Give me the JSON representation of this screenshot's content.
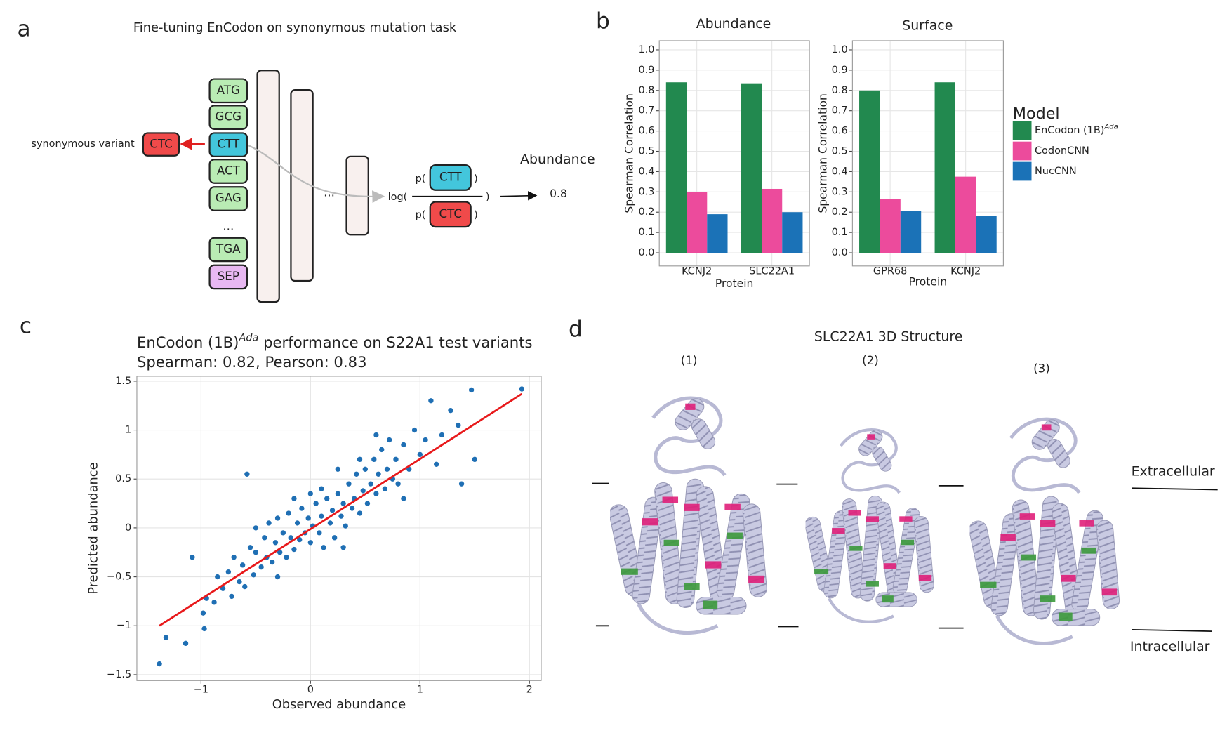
{
  "panel_labels": [
    "a",
    "b",
    "c",
    "d"
  ],
  "panel_a": {
    "title": "Fine-tuning EnCodon on synonymous mutation task",
    "tokens": [
      "ATG",
      "GCG",
      "CTT",
      "ACT",
      "GAG",
      "...",
      "TGA",
      "SEP"
    ],
    "variant_label": "synonymous variant",
    "variant_token": "CTC",
    "layer_ellipsis": "...",
    "formula": {
      "log_open": "log(",
      "num_open": "p(",
      "num_token": "CTT",
      "num_close": ")",
      "den_open": "p(",
      "den_token": "CTC",
      "den_close": ")",
      "log_close": ")"
    },
    "output_label": "Abundance",
    "output_value": "0.8"
  },
  "chart_data": [
    {
      "type": "bar",
      "facets": [
        "Abundance",
        "Surface"
      ],
      "categories": [
        [
          "KCNJ2",
          "SLC22A1"
        ],
        [
          "GPR68",
          "KCNJ2"
        ]
      ],
      "xlabel": "Protein",
      "ylabel": "Spearman Correlation",
      "ylim": [
        -0.065,
        1.045
      ],
      "yticks": [
        {
          "value": 0,
          "label": "0.0"
        },
        0.1,
        0.2,
        0.3,
        0.4,
        0.5,
        0.6,
        0.7,
        0.8,
        0.9,
        {
          "value": 1,
          "label": "1.0"
        }
      ],
      "grid": true,
      "legend_title": "Model",
      "series": [
        {
          "name": "EnCodon (1B)",
          "name_superscript": "Ada",
          "color": "#22894f",
          "values": [
            [
              0.84,
              0.835
            ],
            [
              0.8,
              0.84
            ]
          ]
        },
        {
          "name": "CodonCNN",
          "color": "#ec4b9c",
          "values": [
            [
              0.3,
              0.315
            ],
            [
              0.265,
              0.375
            ]
          ]
        },
        {
          "name": "NucCNN",
          "color": "#1b72b7",
          "values": [
            [
              0.19,
              0.2
            ],
            [
              0.205,
              0.18
            ]
          ]
        }
      ]
    },
    {
      "type": "scatter",
      "title": "EnCodon (1B)",
      "title_superscript": "Ada",
      "title_rest": " performance on S22A1 test variants",
      "subtitle": "Spearman: 0.82, Pearson: 0.83",
      "xlabel": "Observed abundance",
      "ylabel": "Predicted abundance",
      "xlim": [
        -1.586,
        2.107
      ],
      "ylim": [
        -1.56,
        1.55
      ],
      "xticks": [
        {
          "value": -1,
          "label": "−1"
        },
        0,
        1,
        2
      ],
      "yticks": [
        {
          "value": -1.5,
          "label": "−1.5"
        },
        {
          "value": -1,
          "label": "−1"
        },
        {
          "value": -0.5,
          "label": "−0.5"
        },
        0,
        0.5,
        1,
        1.5
      ],
      "grid": true,
      "color": "#1f6fb4",
      "x": [
        -1.38,
        -1.32,
        -1.14,
        -0.97,
        -0.98,
        -1.08,
        -0.95,
        -0.88,
        -0.85,
        -0.8,
        -0.75,
        -0.72,
        -0.7,
        -0.65,
        -0.62,
        -0.58,
        -0.55,
        -0.52,
        -0.5,
        -0.45,
        -0.42,
        -0.4,
        -0.38,
        -0.35,
        -0.32,
        -0.3,
        -0.28,
        -0.25,
        -0.22,
        -0.2,
        -0.18,
        -0.15,
        -0.12,
        -0.1,
        -0.08,
        -0.05,
        -0.02,
        0,
        0.02,
        0.05,
        0.08,
        0.1,
        0.12,
        0.15,
        0.18,
        0.2,
        0.22,
        0.25,
        0.28,
        0.3,
        0.32,
        0.35,
        0.38,
        0.4,
        0.42,
        0.45,
        0.48,
        0.5,
        0.52,
        0.55,
        0.58,
        0.6,
        0.62,
        0.65,
        0.68,
        0.7,
        0.72,
        0.75,
        0.78,
        0.8,
        0.85,
        0.9,
        0.95,
        1.0,
        1.05,
        1.1,
        1.15,
        1.2,
        1.28,
        1.35,
        1.38,
        1.47,
        1.5,
        1.93,
        -0.6,
        -0.3,
        0.1,
        0.3,
        0.6,
        -0.15,
        0.45,
        0,
        -0.5,
        0.85,
        0.25
      ],
      "values": [
        -1.39,
        -1.12,
        -1.18,
        -1.03,
        -0.87,
        -0.3,
        -0.72,
        -0.76,
        -0.5,
        -0.62,
        -0.45,
        -0.7,
        -0.3,
        -0.55,
        -0.38,
        0.55,
        -0.2,
        -0.48,
        -0.25,
        -0.4,
        -0.1,
        -0.3,
        0.05,
        -0.35,
        -0.15,
        0.1,
        -0.25,
        -0.05,
        -0.3,
        0.15,
        -0.1,
        -0.22,
        0.05,
        -0.12,
        0.2,
        -0.05,
        0.1,
        -0.15,
        0.02,
        0.25,
        -0.05,
        0.12,
        -0.2,
        0.3,
        0.05,
        0.18,
        -0.1,
        0.35,
        0.12,
        0.25,
        0.02,
        0.45,
        0.2,
        0.3,
        0.55,
        0.15,
        0.38,
        0.6,
        0.25,
        0.45,
        0.7,
        0.35,
        0.55,
        0.8,
        0.4,
        0.6,
        0.9,
        0.5,
        0.7,
        0.45,
        0.85,
        0.6,
        1.0,
        0.75,
        0.9,
        1.3,
        0.65,
        0.95,
        1.2,
        1.05,
        0.45,
        1.41,
        0.7,
        1.42,
        -0.6,
        -0.5,
        0.4,
        -0.2,
        0.95,
        0.3,
        0.7,
        0.35,
        0,
        0.3,
        0.6
      ],
      "fit_line": {
        "x": [
          -1.38,
          1.93
        ],
        "values": [
          -1.0,
          1.37
        ],
        "color": "#e8191b"
      }
    }
  ],
  "panel_d": {
    "title": "SLC22A1 3D Structure",
    "views": [
      "(1)",
      "(2)",
      "(3)"
    ],
    "membrane": [
      "Extracellular",
      "Intracellular"
    ]
  }
}
